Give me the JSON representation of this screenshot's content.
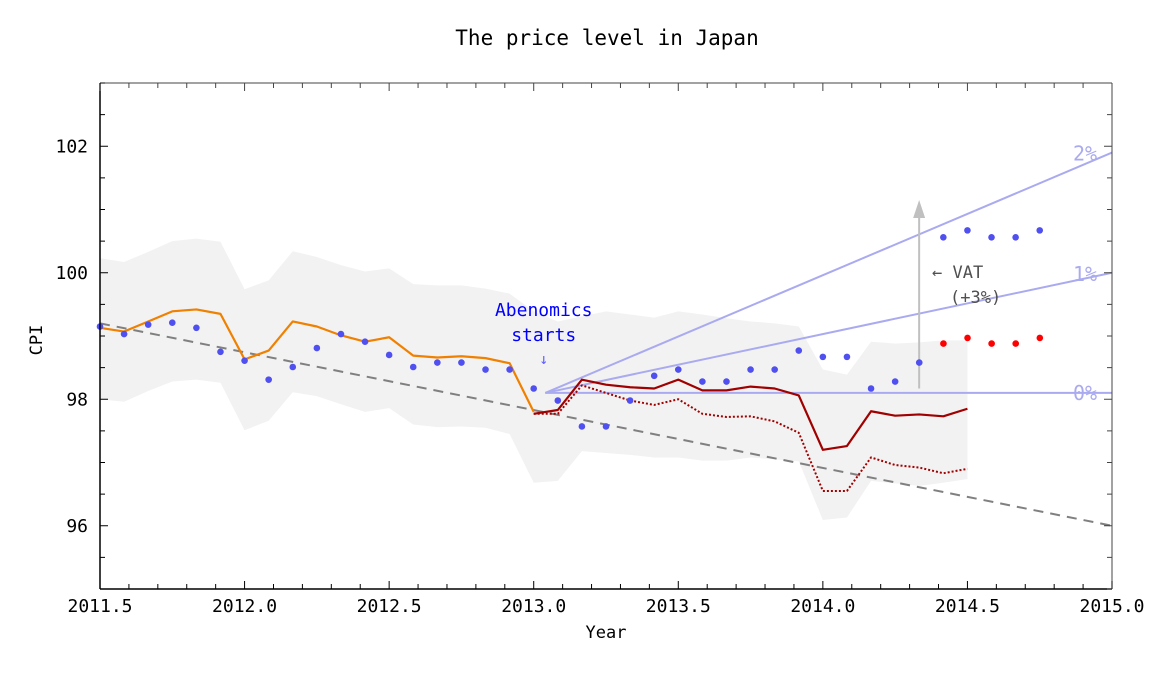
{
  "chart_data": {
    "type": "line",
    "title": "The price level in Japan",
    "xlabel": "Year",
    "ylabel": "CPI",
    "xlim": [
      2011.5,
      2015.0
    ],
    "ylim": [
      95,
      103
    ],
    "xticks": [
      "2011.5",
      "2012.0",
      "2012.5",
      "2013.0",
      "2013.5",
      "2014.0",
      "2014.5",
      "2015.0"
    ],
    "yticks": [
      "96",
      "98",
      "100",
      "102"
    ],
    "grid": false,
    "colors": {
      "orange_line": "#f08000",
      "dark_red_line": "#a00000",
      "blue_dots": "#5050f0",
      "red_dots": "#ff0000",
      "band": "#f2f2f2",
      "trend": "#808080",
      "target_lines": "#aaaaf0",
      "annotation_blue": "#0000ff",
      "vat_arrow": "#c0c0c0"
    },
    "band": {
      "x_start": 2011.5,
      "step_months": 1,
      "upper": [
        100.23,
        100.17,
        100.33,
        100.5,
        100.54,
        100.49,
        99.74,
        99.88,
        100.34,
        100.25,
        100.12,
        100.02,
        100.07,
        99.82,
        99.8,
        99.8,
        99.75,
        99.67,
        99.39,
        99.23,
        99.31,
        99.39,
        99.34,
        99.29,
        99.39,
        99.34,
        99.28,
        99.23,
        99.2,
        99.15,
        98.47,
        98.39,
        98.91,
        98.88,
        98.9,
        98.93,
        98.93
      ],
      "lower": [
        98.0,
        97.96,
        98.13,
        98.28,
        98.31,
        98.26,
        97.51,
        97.66,
        98.11,
        98.05,
        97.92,
        97.8,
        97.86,
        97.6,
        97.56,
        97.57,
        97.55,
        97.45,
        96.68,
        96.71,
        97.18,
        97.15,
        97.12,
        97.08,
        97.08,
        97.03,
        97.03,
        97.08,
        97.05,
        97.02,
        96.09,
        96.13,
        96.71,
        96.67,
        96.63,
        96.68,
        96.74
      ]
    },
    "trend": {
      "x": [
        2011.5,
        2015.0
      ],
      "y": [
        99.2,
        96.0
      ],
      "style": "dashed"
    },
    "series": [
      {
        "style": "solid",
        "color": "#f08000",
        "x_start": 2011.5,
        "values": [
          99.13,
          99.07,
          99.23,
          99.39,
          99.42,
          99.35,
          98.63,
          98.77,
          99.23,
          99.15,
          99.01,
          98.91,
          98.98,
          98.69,
          98.66,
          98.68,
          98.65,
          98.57,
          97.8
        ]
      },
      {
        "style": "solid",
        "color": "#a00000",
        "x_start": 2013.0,
        "values": [
          97.77,
          97.83,
          98.31,
          98.23,
          98.19,
          98.17,
          98.31,
          98.14,
          98.14,
          98.2,
          98.17,
          98.06,
          97.2,
          97.26,
          97.81,
          97.74,
          97.76,
          97.73,
          97.85
        ]
      },
      {
        "style": "dotted",
        "color": "#a00000",
        "x_start": 2013.0,
        "values": [
          97.77,
          97.77,
          98.22,
          98.1,
          97.98,
          97.91,
          98.0,
          97.77,
          97.72,
          97.73,
          97.65,
          97.47,
          96.55,
          96.55,
          97.08,
          96.96,
          96.92,
          96.83,
          96.9
        ]
      },
      {
        "style": "dots",
        "color": "#5050f0",
        "x_start": 2011.5,
        "values": [
          99.15,
          99.03,
          99.18,
          99.21,
          99.13,
          98.75,
          98.61,
          98.31,
          98.51,
          98.81,
          99.03,
          98.91,
          98.7,
          98.51,
          98.58,
          98.58,
          98.47,
          98.47,
          98.17,
          97.98,
          97.57,
          97.57,
          97.98,
          98.37,
          98.47,
          98.28,
          98.28,
          98.47,
          98.47,
          98.77,
          98.67,
          98.67,
          98.17,
          98.28,
          98.58,
          100.56,
          100.67,
          100.56,
          100.56,
          100.67
        ]
      },
      {
        "style": "dots",
        "color": "#ff0000",
        "x_start": 2014.417,
        "values": [
          98.88,
          98.97,
          98.88,
          98.88,
          98.97
        ]
      }
    ],
    "target_lines": [
      {
        "label": "0%",
        "x": [
          2013.04,
          2015.0
        ],
        "y": [
          98.1,
          98.1
        ]
      },
      {
        "label": "1%",
        "x": [
          2013.04,
          2015.0
        ],
        "y": [
          98.1,
          100.0
        ]
      },
      {
        "label": "2%",
        "x": [
          2013.04,
          2015.0
        ],
        "y": [
          98.1,
          101.9
        ]
      }
    ],
    "annotations": {
      "abenomics_line1": "Abenomics",
      "abenomics_line2": "starts",
      "abenomics_arrow": "↓",
      "abenomics_at": {
        "x": 2013.0,
        "y": 98.4
      },
      "vat_line1": "← VAT",
      "vat_line2": "(+3%)",
      "vat_arrow": {
        "x": 2014.333,
        "y_from": 98.17,
        "y_to": 101.15
      }
    }
  }
}
